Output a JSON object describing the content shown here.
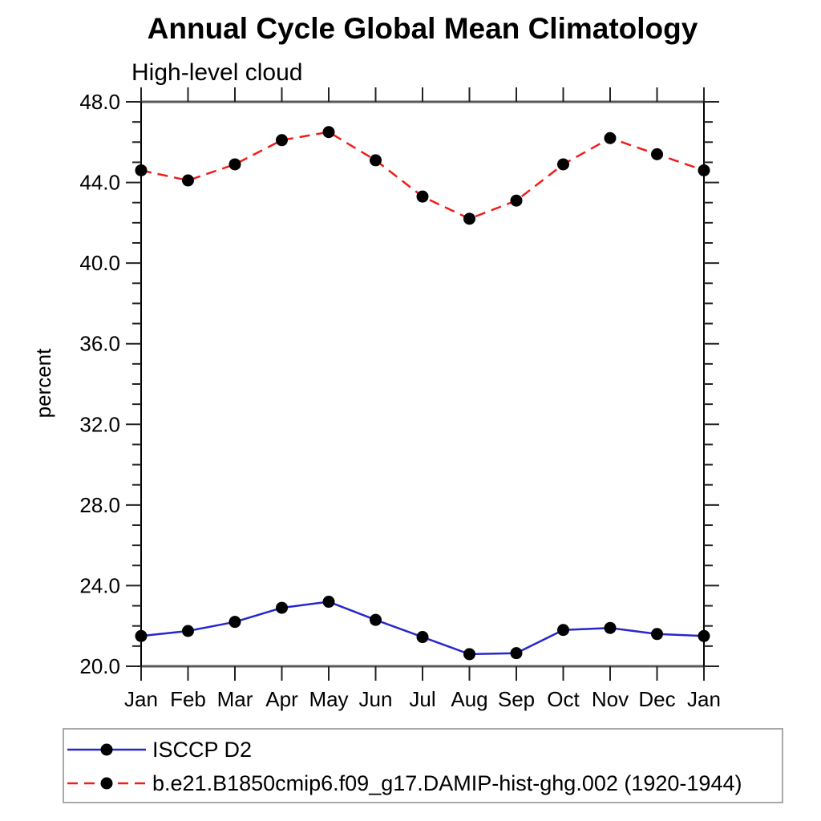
{
  "title": "Annual Cycle Global Mean Climatology",
  "subtitle": "High-level cloud",
  "y_axis_title": "percent",
  "colors": {
    "obs_line": "#2626CC",
    "model_line": "#F21B1B",
    "marker": "#000000",
    "axis_frame": "#5a5a5a",
    "axis_side": "#000000",
    "tick": "#222222",
    "legend_border": "#a9a9a9"
  },
  "chart_data": {
    "type": "line",
    "x_categories": [
      "Jan",
      "Feb",
      "Mar",
      "Apr",
      "May",
      "Jun",
      "Jul",
      "Aug",
      "Sep",
      "Oct",
      "Nov",
      "Dec",
      "Jan"
    ],
    "xlabel": "",
    "ylabel": "percent",
    "ylim": [
      20.0,
      48.0
    ],
    "y_major_ticks": [
      20.0,
      24.0,
      28.0,
      32.0,
      36.0,
      40.0,
      44.0,
      48.0
    ],
    "y_minor_step": 1.0,
    "y_tick_decimals": 1,
    "grid": false,
    "legend_position": "bottom-left-outside",
    "series": [
      {
        "name": "ISCCP D2",
        "line_style": "solid",
        "line_color": "#2626CC",
        "marker": "filled-circle",
        "marker_color": "#000000",
        "values": [
          21.5,
          21.75,
          22.2,
          22.9,
          23.2,
          22.3,
          21.45,
          20.6,
          20.65,
          21.8,
          21.9,
          21.6,
          21.5
        ]
      },
      {
        "name": "b.e21.B1850cmip6.f09_g17.DAMIP-hist-ghg.002 (1920-1944)",
        "line_style": "dashed",
        "line_color": "#F21B1B",
        "marker": "filled-circle",
        "marker_color": "#000000",
        "values": [
          44.6,
          44.1,
          44.9,
          46.1,
          46.5,
          45.1,
          43.3,
          42.2,
          43.1,
          44.9,
          46.2,
          45.4,
          44.6
        ]
      }
    ]
  }
}
